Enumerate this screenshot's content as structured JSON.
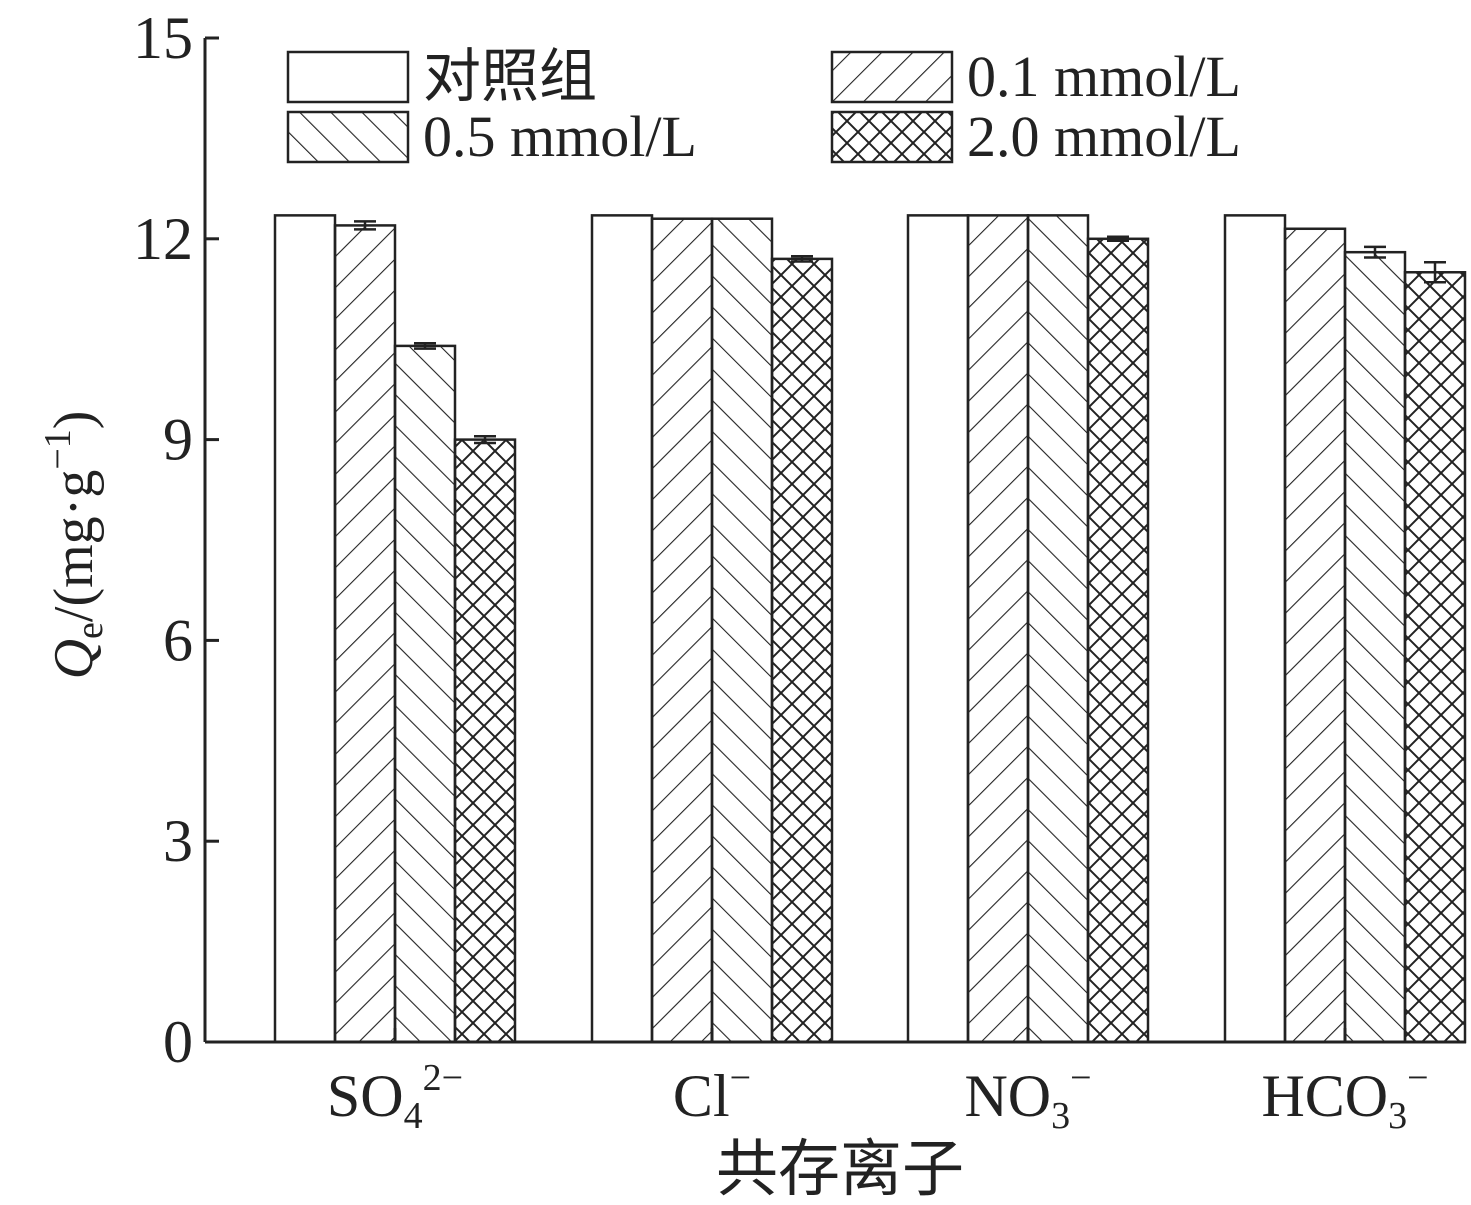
{
  "chart_data": {
    "type": "bar",
    "xlabel": "共存离子",
    "ylabel": {
      "symbol": "Q",
      "subscript": "e",
      "unit_prefix": "/(mg·g",
      "unit_superscript": "−1",
      "unit_suffix": ")"
    },
    "ylim": [
      0,
      15
    ],
    "yticks": [
      "0",
      "3",
      "6",
      "9",
      "12",
      "15"
    ],
    "grid": false,
    "legend_position": "top",
    "categories": [
      {
        "base": "SO",
        "sub": "4",
        "sup": "2−"
      },
      {
        "base": "Cl",
        "sub": "",
        "sup": "−"
      },
      {
        "base": "NO",
        "sub": "3",
        "sup": "−"
      },
      {
        "base": "HCO",
        "sub": "3",
        "sup": "−"
      }
    ],
    "series": [
      {
        "name": "对照组",
        "pattern": "none",
        "values": [
          12.35,
          12.35,
          12.35,
          12.35
        ],
        "errors": [
          0,
          0,
          0,
          0
        ]
      },
      {
        "name": "0.1 mmol/L",
        "pattern": "forward-diagonal",
        "values": [
          12.2,
          12.3,
          12.35,
          12.15
        ],
        "errors": [
          0.06,
          0,
          0,
          0
        ]
      },
      {
        "name": "0.5 mmol/L",
        "pattern": "backward-diagonal",
        "values": [
          10.4,
          12.3,
          12.35,
          11.8
        ],
        "errors": [
          0.04,
          0,
          0,
          0.08
        ]
      },
      {
        "name": "2.0 mmol/L",
        "pattern": "crosshatch",
        "values": [
          9.0,
          11.7,
          12.0,
          11.5
        ],
        "errors": [
          0.05,
          0.04,
          0.03,
          0.15
        ]
      }
    ],
    "colors": {
      "stroke": "#222222",
      "fill": "#ffffff"
    }
  }
}
